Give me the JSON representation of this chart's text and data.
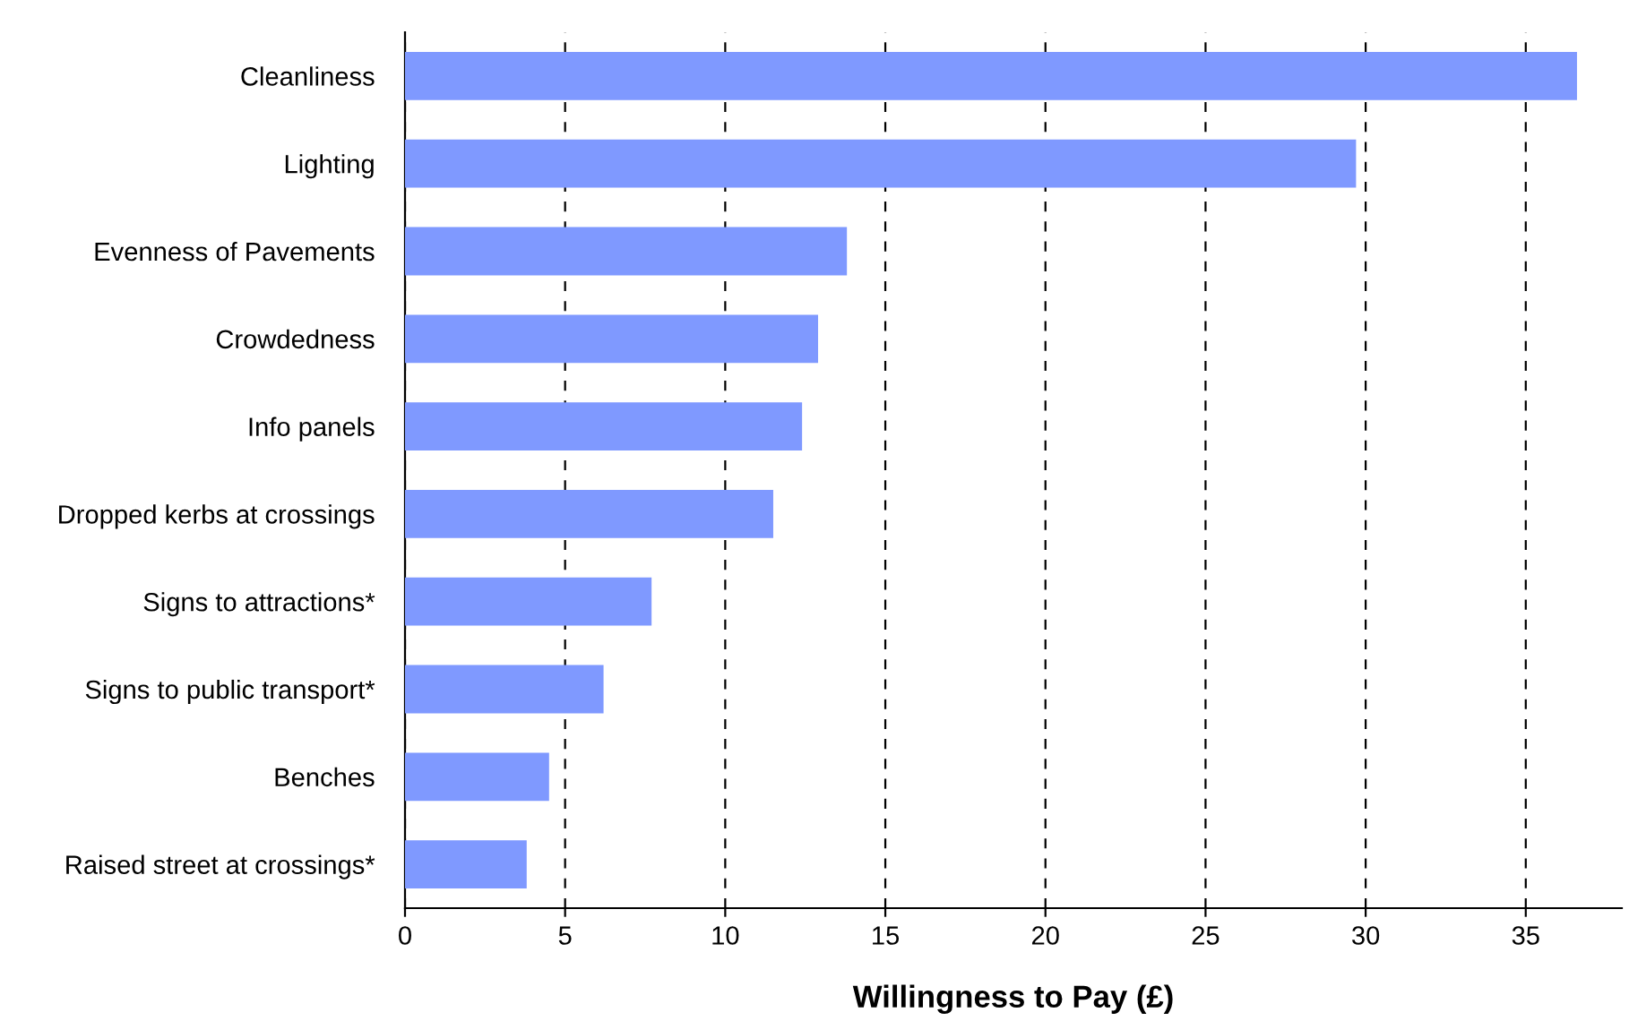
{
  "chart_data": {
    "type": "bar",
    "orientation": "horizontal",
    "xlabel": "Willingness to Pay (£)",
    "categories": [
      "Cleanliness",
      "Lighting",
      "Evenness of Pavements",
      "Crowdedness",
      "Info panels",
      "Dropped kerbs at crossings",
      "Signs to attractions*",
      "Signs to public transport*",
      "Benches",
      "Raised street at crossings*"
    ],
    "values": [
      36.6,
      29.7,
      13.8,
      12.9,
      12.4,
      11.5,
      7.7,
      6.2,
      4.5,
      3.8
    ],
    "color": "#7f99ff",
    "xlim": [
      0,
      38
    ],
    "xticks": [
      0,
      5,
      10,
      15,
      20,
      25,
      30,
      35
    ],
    "grid": "x",
    "legend": false
  }
}
